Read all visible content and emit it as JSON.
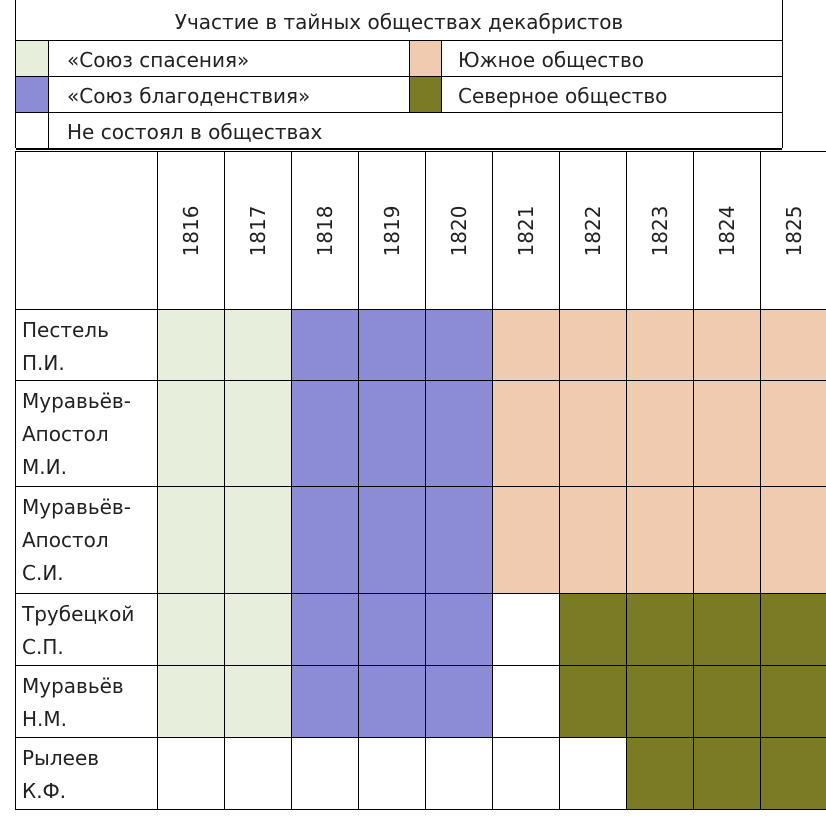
{
  "legend": {
    "title": "Участие в тайных обществах декабристов",
    "items": [
      {
        "key": "spasenie",
        "label": "«Союз спасения»",
        "color": "#e7eedb"
      },
      {
        "key": "south",
        "label": "Южное общество",
        "color": "#f1cbb0"
      },
      {
        "key": "blago",
        "label": "«Союз благоденствия»",
        "color": "#8b8bd6"
      },
      {
        "key": "north",
        "label": "Северное общество",
        "color": "#7b7b26"
      },
      {
        "key": "none",
        "label": "Не состоял в обществах",
        "color": "#ffffff"
      }
    ]
  },
  "table": {
    "years": [
      "1816",
      "1817",
      "1818",
      "1819",
      "1820",
      "1821",
      "1822",
      "1823",
      "1824",
      "1825"
    ],
    "rows": [
      {
        "name_lines": [
          "Пестель",
          "П.И."
        ],
        "membership": [
          "spasenie",
          "spasenie",
          "blago",
          "blago",
          "blago",
          "south",
          "south",
          "south",
          "south",
          "south"
        ]
      },
      {
        "name_lines": [
          "Муравьёв-",
          "Апостол",
          "М.И."
        ],
        "membership": [
          "spasenie",
          "spasenie",
          "blago",
          "blago",
          "blago",
          "south",
          "south",
          "south",
          "south",
          "south"
        ]
      },
      {
        "name_lines": [
          "Муравьёв-",
          "Апостол",
          "С.И."
        ],
        "membership": [
          "spasenie",
          "spasenie",
          "blago",
          "blago",
          "blago",
          "south",
          "south",
          "south",
          "south",
          "south"
        ]
      },
      {
        "name_lines": [
          "Трубецкой",
          "С.П."
        ],
        "membership": [
          "spasenie",
          "spasenie",
          "blago",
          "blago",
          "blago",
          "none",
          "north",
          "north",
          "north",
          "north"
        ]
      },
      {
        "name_lines": [
          "Муравьёв",
          "Н.М."
        ],
        "membership": [
          "spasenie",
          "spasenie",
          "blago",
          "blago",
          "blago",
          "none",
          "north",
          "north",
          "north",
          "north"
        ]
      },
      {
        "name_lines": [
          "Рылеев",
          "К.Ф."
        ],
        "membership": [
          "none",
          "none",
          "none",
          "none",
          "none",
          "none",
          "none",
          "north",
          "north",
          "north"
        ]
      }
    ]
  }
}
